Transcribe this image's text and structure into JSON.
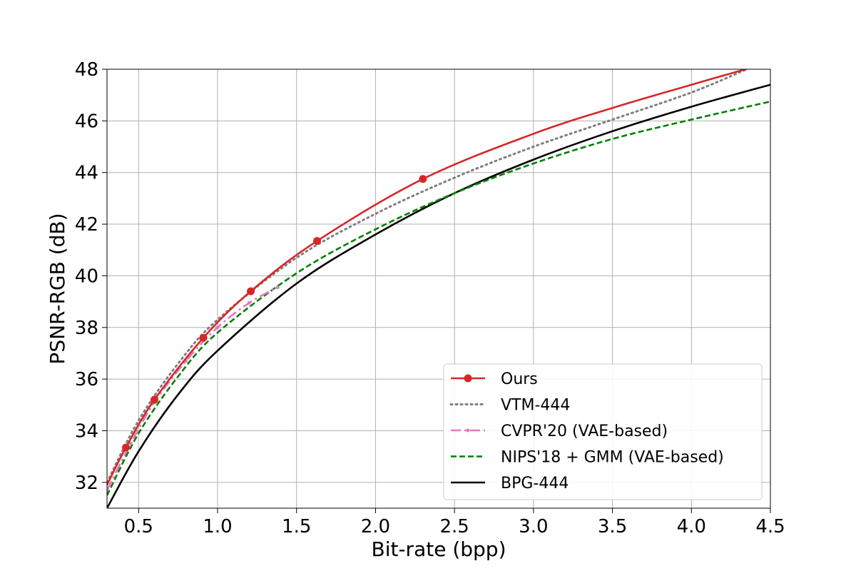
{
  "chart_data": {
    "type": "line",
    "xlabel": "Bit-rate (bpp)",
    "ylabel": "PSNR-RGB (dB)",
    "xlim": [
      0.3,
      4.5
    ],
    "ylim": [
      31,
      48
    ],
    "x_ticks": [
      0.5,
      1.0,
      1.5,
      2.0,
      2.5,
      3.0,
      3.5,
      4.0,
      4.5
    ],
    "x_tick_labels": [
      "0.5",
      "1.0",
      "1.5",
      "2.0",
      "2.5",
      "3.0",
      "3.5",
      "4.0",
      "4.5"
    ],
    "y_ticks": [
      32,
      34,
      36,
      38,
      40,
      42,
      44,
      46,
      48
    ],
    "y_tick_labels": [
      "32",
      "34",
      "36",
      "38",
      "40",
      "42",
      "44",
      "46",
      "48"
    ],
    "grid": true,
    "legend_position": "lower-right",
    "series": [
      {
        "name": "Ours",
        "color": "#d62728",
        "style": "solid",
        "marker": "circle",
        "x": [
          0.3,
          0.42,
          0.6,
          0.91,
          1.21,
          1.63,
          2.3,
          3.0,
          3.5,
          4.0,
          4.4
        ],
        "y": [
          31.9,
          33.35,
          35.2,
          37.6,
          39.4,
          41.35,
          43.75,
          45.5,
          46.5,
          47.4,
          48.1
        ],
        "marker_x": [
          0.42,
          0.6,
          0.91,
          1.21,
          1.63,
          2.3
        ],
        "marker_y": [
          33.35,
          35.2,
          37.6,
          39.4,
          41.35,
          43.75
        ]
      },
      {
        "name": "VTM-444",
        "color": "#7f7f7f",
        "style": "dotted",
        "marker": "none",
        "x": [
          0.3,
          0.5,
          0.75,
          1.0,
          1.5,
          2.0,
          2.5,
          3.0,
          3.5,
          4.0,
          4.35
        ],
        "y": [
          32.0,
          34.4,
          36.6,
          38.3,
          40.7,
          42.4,
          43.8,
          45.0,
          46.05,
          47.1,
          48.0
        ]
      },
      {
        "name": "CVPR'20 (VAE-based)",
        "color": "#e377c2",
        "style": "dashdot",
        "marker": "dot",
        "x": [
          0.3,
          0.45,
          0.6,
          0.8,
          1.0,
          1.2,
          1.38
        ],
        "y": [
          31.7,
          33.5,
          35.1,
          36.7,
          38.0,
          38.95,
          39.55
        ]
      },
      {
        "name": "NIPS'18 + GMM (VAE-based)",
        "color": "#008000",
        "style": "dashed",
        "marker": "none",
        "x": [
          0.3,
          0.5,
          0.75,
          1.0,
          1.5,
          2.0,
          2.5,
          3.0,
          3.5,
          4.0,
          4.5
        ],
        "y": [
          31.5,
          33.9,
          36.1,
          37.8,
          40.1,
          41.8,
          43.2,
          44.35,
          45.3,
          46.05,
          46.75
        ]
      },
      {
        "name": "BPG-444",
        "color": "#000000",
        "style": "solid",
        "marker": "none",
        "x": [
          0.3,
          0.5,
          0.75,
          1.0,
          1.5,
          2.0,
          2.5,
          3.0,
          3.5,
          4.0,
          4.5
        ],
        "y": [
          31.0,
          33.2,
          35.4,
          37.1,
          39.7,
          41.6,
          43.2,
          44.5,
          45.6,
          46.55,
          47.4
        ]
      }
    ]
  }
}
